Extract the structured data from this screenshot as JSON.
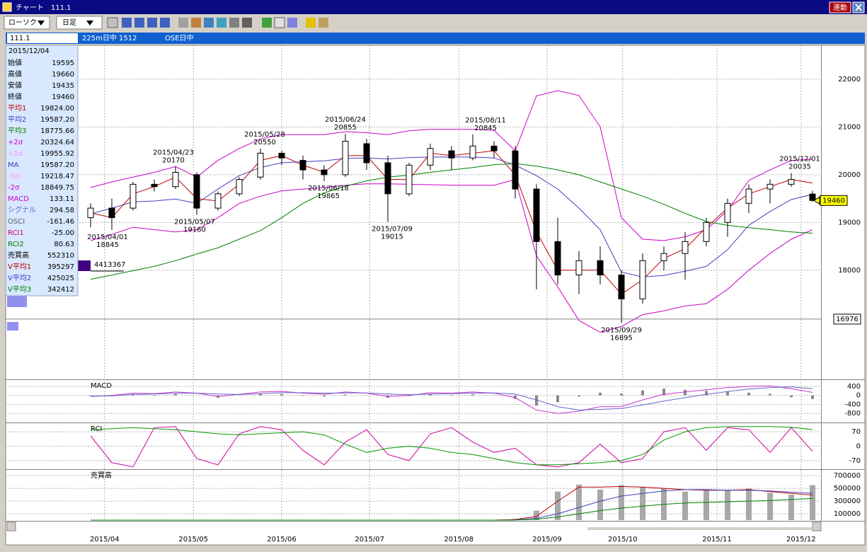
{
  "window": {
    "title": "チャート　111.1",
    "sync_button": "連動"
  },
  "toolbar": {
    "chart_kind": "ローソク",
    "period": "日足"
  },
  "info_bar": [
    "111.1",
    "225m日中 1512",
    "OSE日中"
  ],
  "info_panel": {
    "date": "2015/12/04",
    "rows": [
      {
        "label": "始値",
        "value": "19595",
        "color": "#000000"
      },
      {
        "label": "高値",
        "value": "19660",
        "color": "#000000"
      },
      {
        "label": "安値",
        "value": "19435",
        "color": "#000000"
      },
      {
        "label": "終値",
        "value": "19460",
        "color": "#000000"
      },
      {
        "label": "平均1",
        "value": "19824.00",
        "color": "#c00000"
      },
      {
        "label": "平均2",
        "value": "19587.20",
        "color": "#4040c0"
      },
      {
        "label": "平均3",
        "value": "18775.66",
        "color": "#008000"
      },
      {
        "label": "+2σ",
        "value": "20324.64",
        "color": "#cc00cc"
      },
      {
        "label": "+1σ",
        "value": "19955.92",
        "color": "#ff88ff"
      },
      {
        "label": "MA",
        "value": "19587.20",
        "color": "#4040c0"
      },
      {
        "label": "-1σ",
        "value": "19218.47",
        "color": "#ff88ff"
      },
      {
        "label": "-2σ",
        "value": "18849.75",
        "color": "#cc00cc"
      },
      {
        "label": "MACD",
        "value": "133.11",
        "color": "#cc00cc"
      },
      {
        "label": "シグナル",
        "value": "294.58",
        "color": "#6060c0"
      },
      {
        "label": "OSCI",
        "value": "-161.46",
        "color": "#606060"
      },
      {
        "label": "RCI1",
        "value": "-25.00",
        "color": "#cc0066"
      },
      {
        "label": "RCI2",
        "value": "80.63",
        "color": "#008000"
      },
      {
        "label": "売買高",
        "value": "552310",
        "color": "#000000"
      },
      {
        "label": "V平均1",
        "value": "395297",
        "color": "#c00000"
      },
      {
        "label": "V平均2",
        "value": "425025",
        "color": "#4040c0"
      },
      {
        "label": "V平均3",
        "value": "342412",
        "color": "#008000"
      }
    ]
  },
  "chart_data": [
    {
      "type": "candlestick",
      "xlim": [
        -20,
        172
      ],
      "ylim": [
        15730,
        22710
      ],
      "yticks": [
        22000,
        21000,
        20000,
        19000,
        18000
      ],
      "grid": true,
      "xticks": [
        {
          "value": 3.3,
          "label": "2015/04"
        },
        {
          "value": 24.2,
          "label": "2015/05"
        },
        {
          "value": 45,
          "label": "2015/06"
        },
        {
          "value": 65.7,
          "label": "2015/07"
        },
        {
          "value": 86.7,
          "label": "2015/08"
        },
        {
          "value": 107.5,
          "label": "2015/09"
        },
        {
          "value": 125.3,
          "label": "2015/10"
        },
        {
          "value": 147.5,
          "label": "2015/11"
        },
        {
          "value": 167.3,
          "label": "2015/12"
        }
      ],
      "x": [
        0,
        5,
        10,
        15,
        20,
        25,
        30,
        35,
        40,
        45,
        50,
        55,
        60,
        65,
        70,
        75,
        80,
        85,
        90,
        95,
        100,
        105,
        110,
        115,
        120,
        125,
        130,
        135,
        140,
        145,
        150,
        155,
        160,
        165,
        170
      ],
      "open": [
        19100,
        19300,
        19300,
        19800,
        19750,
        20000,
        19300,
        19600,
        19950,
        20450,
        20300,
        20100,
        20000,
        20650,
        20250,
        19600,
        20200,
        20500,
        20350,
        20600,
        20500,
        19700,
        18600,
        17900,
        18200,
        17900,
        17400,
        18200,
        18350,
        18600,
        19000,
        19400,
        19700,
        19800,
        19595
      ],
      "high": [
        19400,
        19500,
        19850,
        19900,
        20170,
        20050,
        19650,
        19950,
        20550,
        20500,
        20400,
        20200,
        20855,
        20750,
        20400,
        20250,
        20650,
        20600,
        20845,
        20700,
        20600,
        19800,
        19100,
        18400,
        18500,
        18000,
        18350,
        18500,
        18800,
        19100,
        19500,
        19800,
        19900,
        20035,
        19660
      ],
      "low": [
        18900,
        18845,
        19250,
        19650,
        19700,
        19160,
        19250,
        19550,
        19900,
        20200,
        19900,
        19865,
        19950,
        20100,
        19015,
        19550,
        20100,
        20100,
        20300,
        20350,
        19500,
        17600,
        17700,
        17500,
        17700,
        16895,
        17300,
        18000,
        17800,
        18500,
        18700,
        19200,
        19400,
        19750,
        19435
      ],
      "close": [
        19300,
        19100,
        19800,
        19750,
        20050,
        19300,
        19600,
        19900,
        20450,
        20350,
        20100,
        20000,
        20700,
        20250,
        19600,
        20200,
        20550,
        20350,
        20600,
        20500,
        19700,
        18600,
        17900,
        18200,
        17900,
        17400,
        18200,
        18350,
        18600,
        19000,
        19400,
        19700,
        19800,
        19900,
        19460
      ],
      "series": [
        {
          "color": "#cc00cc",
          "values": [
            19730,
            19850,
            19950,
            20050,
            20170,
            19950,
            20300,
            20550,
            20750,
            20840,
            20840,
            20840,
            20900,
            20880,
            20840,
            20920,
            20950,
            20950,
            20950,
            20930,
            20500,
            21650,
            21760,
            21660,
            21000,
            19100,
            18650,
            18620,
            18700,
            18850,
            19250,
            19880,
            20100,
            20300,
            20324.64
          ]
        },
        {
          "color": "#cc00cc",
          "values": [
            18620,
            18750,
            18900,
            18850,
            18800,
            18850,
            19100,
            19400,
            19550,
            19660,
            19700,
            19730,
            19780,
            19810,
            19810,
            19800,
            19790,
            19780,
            19780,
            19780,
            19900,
            18300,
            17650,
            16950,
            16700,
            16820,
            17070,
            17150,
            17250,
            17300,
            17600,
            18000,
            18350,
            18650,
            18849.75
          ]
        },
        {
          "color": "#4040c0",
          "values": [
            19180,
            19300,
            19430,
            19450,
            19490,
            19400,
            19700,
            19980,
            20150,
            20250,
            20270,
            20290,
            20340,
            20350,
            20330,
            20360,
            20370,
            20370,
            20370,
            20350,
            20200,
            19980,
            19700,
            19300,
            18850,
            17960,
            17860,
            17890,
            17980,
            18080,
            18430,
            18940,
            19230,
            19480,
            19587.2
          ]
        },
        {
          "color": "#008000",
          "values": [
            17810,
            17900,
            17990,
            18080,
            18200,
            18340,
            18470,
            18650,
            18830,
            19100,
            19400,
            19620,
            19760,
            19870,
            19950,
            19990,
            20050,
            20100,
            20150,
            20210,
            20230,
            20180,
            20100,
            20000,
            19850,
            19700,
            19550,
            19380,
            19190,
            19020,
            18940,
            18890,
            18850,
            18800,
            18775.66
          ]
        },
        {
          "color": "#c00000",
          "values": [
            19200,
            19100,
            19600,
            19750,
            19950,
            19500,
            19450,
            19800,
            20300,
            20400,
            20200,
            20050,
            20400,
            20400,
            19900,
            19900,
            20450,
            20400,
            20450,
            20500,
            20000,
            18800,
            18000,
            18000,
            18000,
            17500,
            17800,
            18250,
            18450,
            18900,
            19300,
            19600,
            19750,
            19900,
            19824
          ]
        }
      ],
      "annotations": [
        {
          "x": 4,
          "date": "2015/04/01",
          "value": 18845,
          "position": "below"
        },
        {
          "x": 19.5,
          "date": "2015/04/23",
          "value": 20170,
          "position": "above"
        },
        {
          "x": 24.5,
          "date": "2015/05/07",
          "value": 19160,
          "position": "below"
        },
        {
          "x": 41,
          "date": "2015/05/28",
          "value": 20550,
          "position": "above"
        },
        {
          "x": 56,
          "date": "2015/06/18",
          "value": 19865,
          "position": "below"
        },
        {
          "x": 60,
          "date": "2015/06/24",
          "value": 20855,
          "position": "above"
        },
        {
          "x": 71,
          "date": "2015/07/09",
          "value": 19015,
          "position": "below"
        },
        {
          "x": 93,
          "date": "2015/08/11",
          "value": 20845,
          "position": "above"
        },
        {
          "x": 125,
          "date": "2015/09/29",
          "value": 16895,
          "position": "below"
        },
        {
          "x": 167,
          "date": "2015/12/01",
          "value": 20035,
          "position": "above"
        }
      ],
      "last_price": 19460,
      "cursor_value": 16976,
      "side_label": "4413367"
    },
    {
      "type": "macd",
      "title": "MACD",
      "xlim": [
        -20,
        172
      ],
      "ylim": [
        -1170,
        650
      ],
      "yticks": [
        400,
        0,
        -400,
        -800
      ],
      "x": [
        0,
        5,
        10,
        15,
        20,
        25,
        30,
        35,
        40,
        45,
        50,
        55,
        60,
        65,
        70,
        75,
        80,
        85,
        90,
        95,
        100,
        105,
        110,
        115,
        120,
        125,
        130,
        135,
        140,
        145,
        150,
        155,
        160,
        165,
        170
      ],
      "osci": [
        -20,
        20,
        60,
        20,
        60,
        0,
        -110,
        10,
        70,
        60,
        -20,
        -50,
        40,
        -10,
        -110,
        -30,
        60,
        20,
        50,
        -10,
        -160,
        -450,
        -300,
        -50,
        120,
        80,
        220,
        300,
        250,
        200,
        180,
        120,
        70,
        -80,
        -161.46
      ],
      "osci_color": "#888888",
      "series": [
        {
          "color": "#cc33cc",
          "values": [
            -50,
            0,
            100,
            80,
            150,
            100,
            -50,
            50,
            150,
            180,
            100,
            50,
            150,
            100,
            -50,
            0,
            120,
            100,
            150,
            100,
            -100,
            -650,
            -800,
            -700,
            -500,
            -500,
            -200,
            50,
            150,
            250,
            350,
            400,
            420,
            300,
            133.11
          ]
        },
        {
          "color": "#6666cc",
          "values": [
            -30,
            -20,
            40,
            60,
            90,
            100,
            60,
            40,
            80,
            120,
            120,
            100,
            110,
            110,
            60,
            30,
            60,
            80,
            100,
            110,
            60,
            -200,
            -500,
            -650,
            -620,
            -580,
            -420,
            -250,
            -100,
            50,
            170,
            280,
            350,
            380,
            294.58
          ]
        }
      ]
    },
    {
      "type": "line",
      "title": "RCI",
      "xlim": [
        -20,
        172
      ],
      "ylim": [
        -108,
        108
      ],
      "yticks": [
        70,
        0,
        -70
      ],
      "x": [
        0,
        5,
        10,
        15,
        20,
        25,
        30,
        35,
        40,
        45,
        50,
        55,
        60,
        65,
        70,
        75,
        80,
        85,
        90,
        95,
        100,
        105,
        110,
        115,
        120,
        125,
        130,
        135,
        140,
        145,
        150,
        155,
        160,
        165,
        170
      ],
      "series": [
        {
          "color": "#cc0099",
          "values": [
            50,
            -80,
            -100,
            90,
            95,
            -60,
            -90,
            60,
            95,
            80,
            -20,
            -90,
            20,
            80,
            -40,
            -70,
            60,
            90,
            20,
            -30,
            -10,
            -90,
            -100,
            -80,
            10,
            -80,
            -60,
            70,
            90,
            -20,
            90,
            80,
            -30,
            90,
            -25
          ]
        },
        {
          "color": "#009900",
          "values": [
            80,
            85,
            90,
            85,
            80,
            70,
            60,
            55,
            60,
            65,
            70,
            55,
            10,
            -30,
            -10,
            0,
            -10,
            -30,
            -40,
            -60,
            -80,
            -90,
            -90,
            -85,
            -80,
            -70,
            -40,
            30,
            70,
            90,
            95,
            95,
            95,
            92,
            80.63
          ]
        }
      ]
    },
    {
      "type": "bar",
      "title": "売買高",
      "xlim": [
        -20,
        172
      ],
      "ylim": [
        0,
        780000
      ],
      "yticks": [
        700000,
        500000,
        300000,
        100000
      ],
      "color": "#a8a8a8",
      "x": [
        0,
        5,
        10,
        15,
        20,
        25,
        30,
        35,
        40,
        45,
        50,
        55,
        60,
        65,
        70,
        75,
        80,
        85,
        90,
        95,
        100,
        105,
        110,
        115,
        120,
        125,
        130,
        135,
        140,
        145,
        150,
        155,
        160,
        165,
        170
      ],
      "values": [
        0,
        0,
        0,
        0,
        0,
        0,
        0,
        0,
        0,
        0,
        0,
        0,
        0,
        0,
        0,
        0,
        0,
        0,
        0,
        0,
        20000,
        150000,
        450000,
        560000,
        480000,
        550000,
        520000,
        500000,
        450000,
        480000,
        470000,
        500000,
        430000,
        400000,
        552310
      ],
      "series": [
        {
          "color": "#c00000",
          "values": [
            0,
            0,
            0,
            0,
            0,
            0,
            0,
            0,
            0,
            0,
            0,
            0,
            0,
            0,
            0,
            0,
            0,
            0,
            0,
            0,
            10000,
            60000,
            300000,
            520000,
            520000,
            530000,
            520000,
            500000,
            480000,
            470000,
            470000,
            480000,
            450000,
            420000,
            395297
          ]
        },
        {
          "color": "#4040c0",
          "values": [
            0,
            0,
            0,
            0,
            0,
            0,
            0,
            0,
            0,
            0,
            0,
            0,
            0,
            0,
            0,
            0,
            0,
            0,
            0,
            0,
            5000,
            30000,
            100000,
            200000,
            300000,
            380000,
            420000,
            460000,
            480000,
            480000,
            470000,
            470000,
            460000,
            440000,
            425025
          ]
        },
        {
          "color": "#008000",
          "values": [
            0,
            0,
            0,
            0,
            0,
            0,
            0,
            0,
            0,
            0,
            0,
            0,
            0,
            0,
            0,
            0,
            0,
            0,
            0,
            0,
            2000,
            15000,
            50000,
            100000,
            150000,
            190000,
            220000,
            250000,
            270000,
            280000,
            290000,
            300000,
            310000,
            325000,
            342412
          ]
        }
      ]
    }
  ]
}
